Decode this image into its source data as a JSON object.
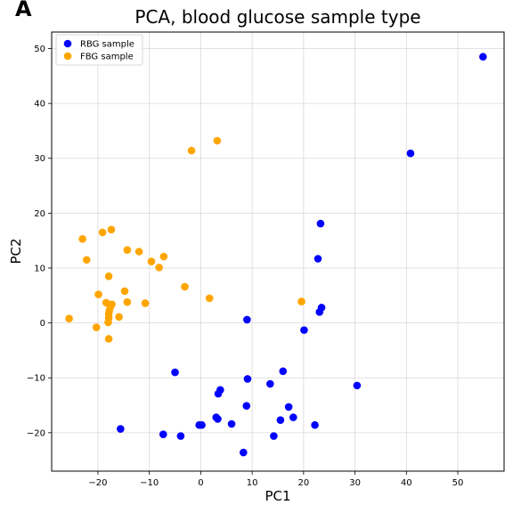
{
  "panel_letter": "A",
  "chart_data": {
    "type": "scatter",
    "title": "PCA, blood glucose sample type",
    "xlabel": "PC1",
    "ylabel": "PC2",
    "xlim": [
      -29,
      59
    ],
    "ylim": [
      -27,
      53
    ],
    "xticks": [
      -20,
      -10,
      0,
      10,
      20,
      30,
      40,
      50
    ],
    "yticks": [
      -20,
      -10,
      0,
      10,
      20,
      30,
      40,
      50
    ],
    "grid": true,
    "legend_position": "top-left",
    "series": [
      {
        "name": "RBG sample",
        "color": "#0000ff",
        "points": [
          [
            54.9,
            48.5
          ],
          [
            40.8,
            30.9
          ],
          [
            23.3,
            18.1
          ],
          [
            22.8,
            11.7
          ],
          [
            23.5,
            2.8
          ],
          [
            23.1,
            2.0
          ],
          [
            9.0,
            0.6
          ],
          [
            20.1,
            -1.3
          ],
          [
            30.4,
            -11.4
          ],
          [
            16.0,
            -8.8
          ],
          [
            13.5,
            -11.1
          ],
          [
            9.1,
            -10.2
          ],
          [
            -5.0,
            -9.0
          ],
          [
            3.8,
            -12.2
          ],
          [
            3.4,
            -12.9
          ],
          [
            17.1,
            -15.3
          ],
          [
            8.9,
            -15.1
          ],
          [
            15.5,
            -17.7
          ],
          [
            18.0,
            -17.2
          ],
          [
            3.0,
            -17.2
          ],
          [
            3.3,
            -17.5
          ],
          [
            6.0,
            -18.4
          ],
          [
            22.2,
            -18.6
          ],
          [
            -0.3,
            -18.6
          ],
          [
            0.2,
            -18.6
          ],
          [
            -15.6,
            -19.3
          ],
          [
            -7.3,
            -20.3
          ],
          [
            -3.9,
            -20.6
          ],
          [
            14.2,
            -20.6
          ],
          [
            8.3,
            -23.6
          ]
        ]
      },
      {
        "name": "FBG sample",
        "color": "#ffa500",
        "points": [
          [
            3.2,
            33.2
          ],
          [
            -1.8,
            31.4
          ],
          [
            -17.4,
            17.0
          ],
          [
            -19.1,
            16.5
          ],
          [
            -23.0,
            15.3
          ],
          [
            -14.3,
            13.3
          ],
          [
            -12.0,
            13.0
          ],
          [
            -7.2,
            12.1
          ],
          [
            -22.2,
            11.5
          ],
          [
            -9.6,
            11.2
          ],
          [
            -8.1,
            10.1
          ],
          [
            -17.9,
            8.5
          ],
          [
            -3.1,
            6.6
          ],
          [
            -14.8,
            5.8
          ],
          [
            -19.9,
            5.2
          ],
          [
            1.7,
            4.5
          ],
          [
            -14.3,
            3.8
          ],
          [
            -10.8,
            3.6
          ],
          [
            -18.4,
            3.7
          ],
          [
            19.6,
            3.9
          ],
          [
            -17.3,
            3.4
          ],
          [
            -17.6,
            2.9
          ],
          [
            -17.8,
            2.2
          ],
          [
            -17.9,
            1.6
          ],
          [
            -15.9,
            1.1
          ],
          [
            -17.9,
            0.9
          ],
          [
            -25.6,
            0.8
          ],
          [
            -18.0,
            0.1
          ],
          [
            -20.3,
            -0.8
          ],
          [
            -17.9,
            -2.9
          ]
        ]
      }
    ]
  }
}
